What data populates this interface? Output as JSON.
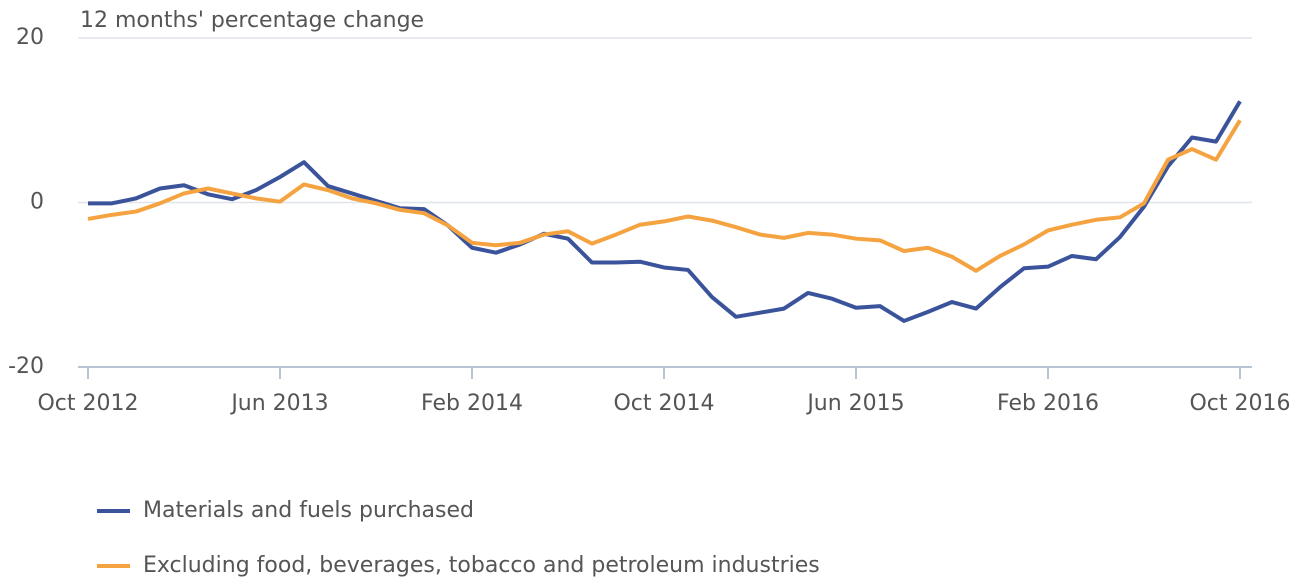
{
  "chart_data": {
    "type": "line",
    "title": "12 months' percentage change",
    "categories": [
      "Oct 2012",
      null,
      null,
      null,
      null,
      null,
      null,
      null,
      "Jun 2013",
      null,
      null,
      null,
      null,
      null,
      null,
      null,
      "Feb 2014",
      null,
      null,
      null,
      null,
      null,
      null,
      null,
      "Oct 2014",
      null,
      null,
      null,
      null,
      null,
      null,
      null,
      "Jun 2015",
      null,
      null,
      null,
      null,
      null,
      null,
      null,
      "Feb 2016",
      null,
      null,
      null,
      null,
      null,
      null,
      null,
      "Oct 2016"
    ],
    "series": [
      {
        "name": "Materials and fuels purchased",
        "color": "#3a539b",
        "values": [
          -0.1,
          -0.1,
          0.5,
          1.7,
          2.1,
          1.0,
          0.4,
          1.5,
          3.1,
          4.9,
          2.0,
          1.1,
          0.2,
          -0.7,
          -0.8,
          -2.8,
          -5.5,
          -6.1,
          -5.1,
          -3.8,
          -4.4,
          -7.3,
          -7.3,
          -7.2,
          -7.9,
          -8.2,
          -11.5,
          -13.9,
          -13.4,
          -12.9,
          -11.0,
          -11.7,
          -12.8,
          -12.6,
          -14.4,
          -13.3,
          -12.1,
          -12.9,
          -10.3,
          -8.0,
          -7.8,
          -6.5,
          -6.9,
          -4.2,
          -0.5,
          4.4,
          7.9,
          7.4,
          12.3
        ]
      },
      {
        "name": "Excluding food, beverages, tobacco and petroleum industries",
        "color": "#f4a340",
        "values": [
          -2.0,
          -1.5,
          -1.1,
          -0.1,
          1.1,
          1.7,
          1.1,
          0.5,
          0.1,
          2.2,
          1.5,
          0.5,
          -0.1,
          -0.9,
          -1.3,
          -2.8,
          -4.9,
          -5.2,
          -4.9,
          -3.9,
          -3.5,
          -5.0,
          -3.9,
          -2.7,
          -2.3,
          -1.7,
          -2.2,
          -3.0,
          -3.9,
          -4.3,
          -3.7,
          -3.9,
          -4.4,
          -4.6,
          -5.9,
          -5.5,
          -6.6,
          -8.3,
          -6.5,
          -5.1,
          -3.4,
          -2.7,
          -2.1,
          -1.8,
          -0.1,
          5.2,
          6.5,
          5.2,
          10.0
        ]
      }
    ],
    "ylim": [
      -20,
      20
    ],
    "yticks": [
      -20,
      0,
      20
    ],
    "grid": true
  }
}
